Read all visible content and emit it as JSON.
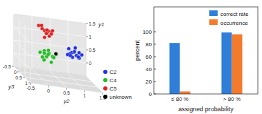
{
  "chart_data": [
    {
      "type": "scatter3d",
      "xlabel": "y3",
      "ylabel": "y2",
      "zlabel": "y1",
      "xlim": [
        -0.5,
        1
      ],
      "xticks": [
        -0.5,
        0,
        0.5,
        1
      ],
      "ylim": [
        -0.5,
        1.5
      ],
      "yticks": [
        -0.5,
        0,
        0.5,
        1,
        1.5
      ],
      "zlim": [
        -0.5,
        1.5
      ],
      "zticks": [
        0,
        0.5,
        1,
        1.5
      ],
      "legend": "lower right",
      "series": [
        {
          "name": "C2",
          "color": "#2233dd",
          "x": [
            0.0,
            0.1,
            -0.1,
            0.2,
            0.05,
            0.15,
            -0.05,
            0.1,
            0.25,
            0.0,
            0.12,
            -0.08,
            0.18,
            0.05
          ],
          "y": [
            0.95,
            1.05,
            0.9,
            1.1,
            1.0,
            0.85,
            1.15,
            1.2,
            0.95,
            1.05,
            0.8,
            1.0,
            1.1,
            0.9
          ],
          "z": [
            0.5,
            0.45,
            0.6,
            0.4,
            0.55,
            0.5,
            0.35,
            0.5,
            0.65,
            0.7,
            0.45,
            0.3,
            0.6,
            0.4
          ]
        },
        {
          "name": "C4",
          "color": "#22bb22",
          "x": [
            0.5,
            0.4,
            0.6,
            0.55,
            0.45,
            0.35,
            0.65,
            0.5,
            0.4,
            0.6,
            0.3,
            0.55,
            0.45,
            0.5
          ],
          "y": [
            0.1,
            0.2,
            0.0,
            0.25,
            0.05,
            0.15,
            0.1,
            0.3,
            -0.05,
            0.2,
            0.1,
            0.35,
            0.0,
            0.15
          ],
          "z": [
            0.4,
            0.5,
            0.3,
            0.45,
            0.6,
            0.35,
            0.55,
            0.4,
            0.5,
            0.25,
            0.45,
            0.55,
            0.35,
            0.65
          ]
        },
        {
          "name": "C5",
          "color": "#dd2222",
          "x": [
            0.0,
            -0.1,
            0.1,
            0.05,
            -0.15,
            0.15,
            0.0,
            -0.05,
            0.1,
            0.2,
            -0.1,
            0.05,
            0.0,
            0.12
          ],
          "y": [
            0.2,
            0.3,
            0.1,
            0.25,
            0.35,
            0.15,
            0.4,
            0.05,
            0.3,
            0.2,
            0.45,
            0.1,
            0.25,
            0.35
          ],
          "z": [
            1.2,
            1.1,
            1.3,
            1.25,
            1.15,
            1.0,
            1.2,
            1.35,
            1.05,
            1.3,
            1.2,
            1.4,
            1.1,
            1.15
          ]
        },
        {
          "name": "unknown",
          "color": "#000000",
          "x": [
            0.2
          ],
          "y": [
            0.45
          ],
          "z": [
            0.45
          ]
        }
      ]
    },
    {
      "type": "bar",
      "xlabel": "assigned probability",
      "ylabel": "percent",
      "categories": [
        "≤ 80 %",
        "> 80 %"
      ],
      "ylim": [
        0,
        140
      ],
      "yticks": [
        0,
        20,
        40,
        60,
        80,
        100
      ],
      "legend": "upper right",
      "series": [
        {
          "name": "correct rate",
          "color": "#2f7ed8",
          "values": [
            82,
            99
          ]
        },
        {
          "name": "occurrence",
          "color": "#f47a2c",
          "values": [
            4,
            96
          ]
        }
      ]
    }
  ]
}
